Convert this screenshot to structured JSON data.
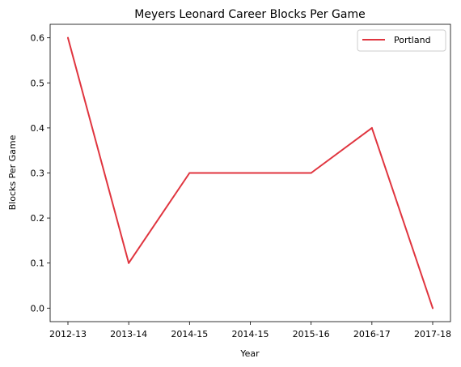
{
  "chart_data": {
    "type": "line",
    "title": "Meyers Leonard Career Blocks Per Game",
    "xlabel": "Year",
    "ylabel": "Blocks Per Game",
    "categories": [
      "2012-13",
      "2013-14",
      "2014-15",
      "2014-15",
      "2015-16",
      "2016-17",
      "2017-18"
    ],
    "series": [
      {
        "name": "Portland",
        "values": [
          0.6,
          0.1,
          0.3,
          0.3,
          0.3,
          0.4,
          0.0
        ],
        "color": "#e0353f"
      }
    ],
    "ylim": [
      -0.03,
      0.63
    ],
    "yticks": [
      0.0,
      0.1,
      0.2,
      0.3,
      0.4,
      0.5,
      0.6
    ],
    "ytick_labels": [
      "0.0",
      "0.1",
      "0.2",
      "0.3",
      "0.4",
      "0.5",
      "0.6"
    ],
    "grid": false,
    "legend_position": "top-right"
  }
}
